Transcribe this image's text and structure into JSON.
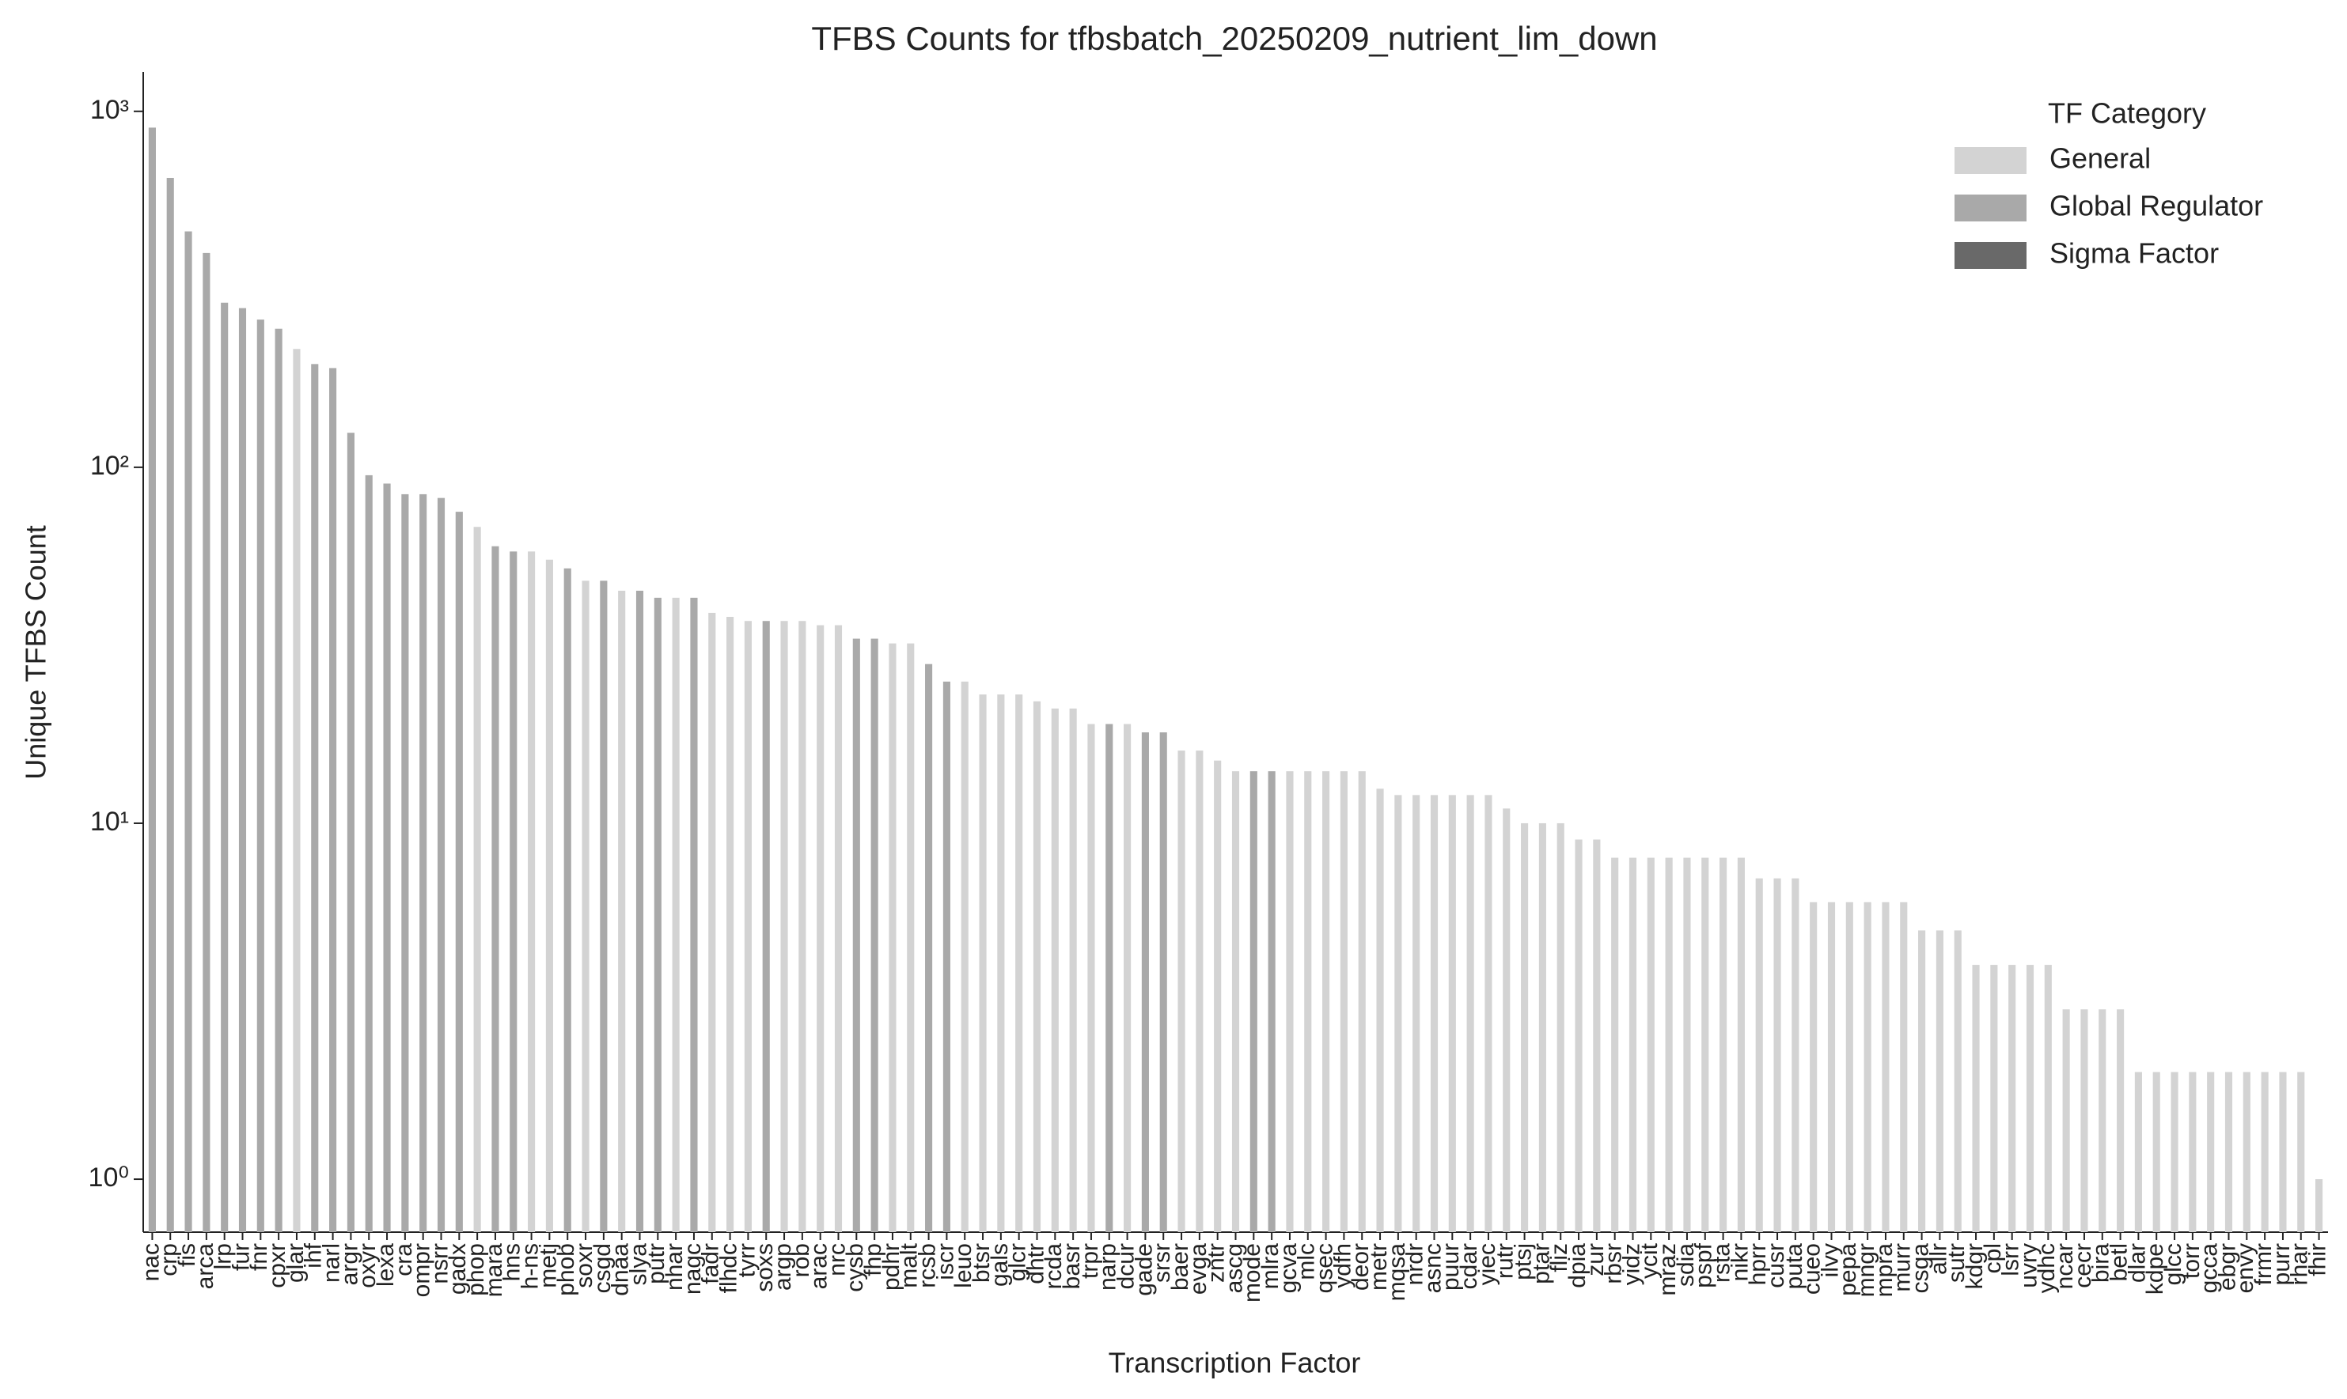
{
  "chart_data": {
    "type": "bar",
    "title": "TFBS Counts for tfbsbatch_20250209_nutrient_lim_down",
    "x_label": "Transcription Factor",
    "y_label": "Unique TFBS Count",
    "legend_title": "TF Category",
    "legend": "upper right",
    "yscale": "log",
    "ylim": [
      0.71,
      1290
    ],
    "yticks": [
      {
        "value": 1,
        "label": "10⁰"
      },
      {
        "value": 10,
        "label": "10¹"
      },
      {
        "value": 100,
        "label": "10²"
      },
      {
        "value": 1000,
        "label": "10³"
      }
    ],
    "categories": [
      "nac",
      "crp",
      "fis",
      "arca",
      "lrp",
      "fur",
      "fnr",
      "cpxr",
      "glar",
      "ihf",
      "narl",
      "argr",
      "oxyr",
      "lexa",
      "cra",
      "ompr",
      "nsrr",
      "gadx",
      "phop",
      "mara",
      "hns",
      "h-ns",
      "metj",
      "phob",
      "soxr",
      "csgd",
      "dnaa",
      "slya",
      "putr",
      "nhar",
      "nagc",
      "fadr",
      "flhdc",
      "tyrr",
      "soxs",
      "argp",
      "rob",
      "arac",
      "nrc",
      "cysb",
      "fhp",
      "pdhr",
      "malt",
      "rcsb",
      "iscr",
      "leuo",
      "btsr",
      "gals",
      "glcr",
      "dhtr",
      "rcda",
      "basr",
      "trpr",
      "narp",
      "dcur",
      "gade",
      "srsr",
      "baer",
      "evga",
      "zntr",
      "ascg",
      "mode",
      "mlra",
      "gcva",
      "mlc",
      "qsec",
      "ydfh",
      "deor",
      "metr",
      "mqsa",
      "nrdr",
      "asnc",
      "puur",
      "cdar",
      "yiec",
      "rutr",
      "ptsj",
      "ptar",
      "fliz",
      "dpia",
      "zur",
      "rbsr",
      "yidz",
      "ycit",
      "mraz",
      "sdia",
      "pspf",
      "rsta",
      "nikr",
      "hprr",
      "cusr",
      "puta",
      "cueo",
      "ilvy",
      "pepa",
      "mngr",
      "mpra",
      "murr",
      "csga",
      "allr",
      "sutr",
      "kdgr",
      "cpl",
      "lsrr",
      "uvry",
      "ydhc",
      "ncar",
      "cecr",
      "bira",
      "betl",
      "dlar",
      "kdpe",
      "glcc",
      "torr",
      "gcca",
      "ebgr",
      "envy",
      "frmr",
      "purr",
      "rhar",
      "fhir"
    ],
    "series": [
      {
        "name": "General",
        "color": "#d3d3d3",
        "values": [
          null,
          null,
          null,
          null,
          null,
          null,
          null,
          null,
          215,
          null,
          null,
          null,
          null,
          null,
          null,
          null,
          null,
          null,
          68,
          null,
          null,
          58,
          55,
          null,
          48,
          null,
          45,
          null,
          null,
          43,
          null,
          39,
          38,
          37,
          null,
          37,
          37,
          36,
          36,
          null,
          null,
          32,
          32,
          null,
          null,
          25,
          23,
          23,
          23,
          22,
          21,
          21,
          19,
          null,
          19,
          null,
          null,
          16,
          16,
          15,
          14,
          null,
          null,
          14,
          14,
          14,
          14,
          14,
          12.5,
          12,
          12,
          12,
          12,
          12,
          12,
          11,
          10,
          10,
          10,
          9,
          9,
          8,
          8,
          8,
          8,
          8,
          8,
          8,
          8,
          7,
          7,
          7,
          6,
          6,
          6,
          6,
          6,
          6,
          5,
          5,
          5,
          4,
          4,
          4,
          4,
          4,
          3,
          3,
          3,
          3,
          2,
          2,
          2,
          2,
          2,
          2,
          2,
          2,
          2,
          2,
          1
        ]
      },
      {
        "name": "Global Regulator",
        "color": "#a9a9a9",
        "values": [
          900,
          650,
          460,
          400,
          290,
          280,
          260,
          245,
          null,
          195,
          190,
          125,
          95,
          90,
          84,
          84,
          82,
          75,
          null,
          60,
          58,
          null,
          null,
          52,
          null,
          48,
          null,
          45,
          43,
          null,
          43,
          null,
          null,
          null,
          37,
          null,
          null,
          null,
          null,
          33,
          33,
          null,
          null,
          28,
          25,
          null,
          null,
          null,
          null,
          null,
          null,
          null,
          null,
          19,
          null,
          18,
          18,
          null,
          null,
          null,
          null,
          14,
          14,
          null,
          null,
          null,
          null,
          null,
          null,
          null,
          null,
          null,
          null,
          null,
          null,
          null,
          null,
          null,
          null,
          null,
          null,
          null,
          null,
          null,
          null,
          null,
          null,
          null,
          null,
          null,
          null,
          null,
          null,
          null,
          null,
          null,
          null,
          null,
          null,
          null,
          null,
          null,
          null,
          null,
          null,
          null,
          null,
          null,
          null,
          null,
          null,
          null,
          null,
          null,
          null,
          null,
          null,
          null,
          null,
          null,
          null
        ]
      },
      {
        "name": "Sigma Factor",
        "color": "#696969",
        "values": [
          null,
          null,
          null,
          null,
          null,
          null,
          null,
          null,
          null,
          null,
          null,
          null,
          null,
          null,
          null,
          null,
          null,
          null,
          null,
          null,
          null,
          null,
          null,
          null,
          null,
          null,
          null,
          null,
          null,
          null,
          null,
          null,
          null,
          null,
          null,
          null,
          null,
          null,
          null,
          null,
          null,
          null,
          null,
          null,
          null,
          null,
          null,
          null,
          null,
          null,
          null,
          null,
          null,
          null,
          null,
          null,
          null,
          null,
          null,
          null,
          null,
          null,
          null,
          null,
          null,
          null,
          null,
          null,
          null,
          null,
          null,
          null,
          null,
          null,
          null,
          null,
          null,
          null,
          null,
          null,
          null,
          null,
          null,
          null,
          null,
          null,
          null,
          null,
          null,
          null,
          null,
          null,
          null,
          null,
          null,
          null,
          null,
          null,
          null,
          null,
          null,
          null,
          null,
          null,
          null,
          null,
          null,
          null,
          null,
          null,
          null,
          null,
          null,
          null,
          null,
          null,
          null,
          null,
          null,
          null,
          null
        ]
      }
    ]
  }
}
